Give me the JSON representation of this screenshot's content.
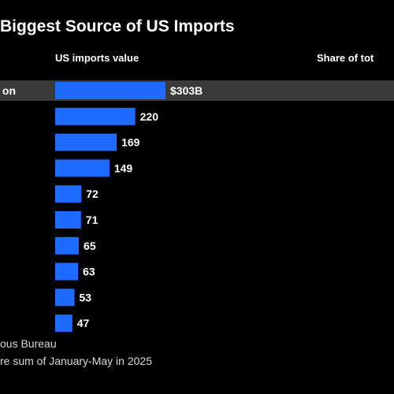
{
  "header": {
    "title": "Biggest Source of US Imports",
    "col_value": "US imports value",
    "col_share": "Share of tot"
  },
  "colors": {
    "bar": "#1f6bff",
    "highlight_row": "#3a3a3a",
    "background": "#000000",
    "text": "#ffffff"
  },
  "chart_data": {
    "type": "bar",
    "orientation": "horizontal",
    "categories": [
      "on",
      "",
      "",
      "",
      "",
      "",
      "",
      "",
      "",
      ""
    ],
    "values": [
      303,
      220,
      169,
      149,
      72,
      71,
      65,
      63,
      53,
      47
    ],
    "value_labels": [
      "$303B",
      "220",
      "169",
      "149",
      "72",
      "71",
      "65",
      "63",
      "53",
      "47"
    ],
    "unit": "billion US dollars",
    "xlim": [
      0,
      303
    ],
    "grid": false,
    "legend": "none",
    "highlighted_index": 0
  },
  "footer": {
    "source": "ous Bureau",
    "note": "re sum of January-May in 2025"
  }
}
